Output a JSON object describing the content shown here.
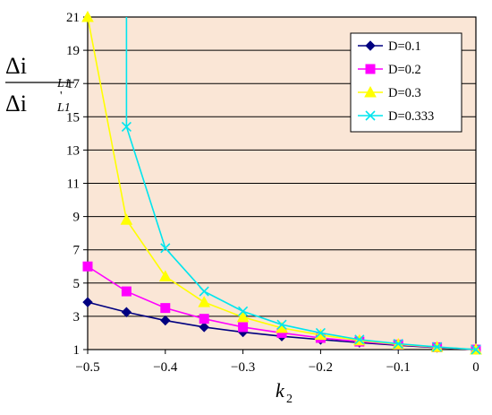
{
  "chart_data": {
    "type": "line",
    "title": "",
    "xlabel": "k",
    "xlabel_sub": "2",
    "ylabel_numerator": "Δi",
    "ylabel_denominator": "Δi",
    "ylabel_sub": "L1",
    "ylabel_prime": "'",
    "xlim": [
      -0.5,
      0
    ],
    "ylim": [
      1,
      21
    ],
    "x_ticks": [
      "−0.5",
      "−0.4",
      "−0.3",
      "−0.2",
      "−0.1",
      "0"
    ],
    "x_tick_values": [
      -0.5,
      -0.4,
      -0.3,
      -0.2,
      -0.1,
      0
    ],
    "y_ticks": [
      "1",
      "3",
      "5",
      "7",
      "9",
      "11",
      "13",
      "15",
      "17",
      "19",
      "21"
    ],
    "y_tick_values": [
      1,
      3,
      5,
      7,
      9,
      11,
      13,
      15,
      17,
      19,
      21
    ],
    "grid": "horizontal",
    "legend_position": "top-right",
    "plot_background": "#fae6d6",
    "series": [
      {
        "name": "D=0.1",
        "color": "#000080",
        "marker": "diamond",
        "x": [
          -0.5,
          -0.45,
          -0.4,
          -0.35,
          -0.3,
          -0.25,
          -0.2,
          -0.15,
          -0.1,
          -0.05,
          0
        ],
        "y": [
          3.85,
          3.25,
          2.75,
          2.35,
          2.05,
          1.8,
          1.6,
          1.42,
          1.26,
          1.12,
          1.0
        ]
      },
      {
        "name": "D=0.2",
        "color": "#ff00ff",
        "marker": "square",
        "x": [
          -0.5,
          -0.45,
          -0.4,
          -0.35,
          -0.3,
          -0.25,
          -0.2,
          -0.15,
          -0.1,
          -0.05,
          0
        ],
        "y": [
          6.0,
          4.5,
          3.5,
          2.85,
          2.35,
          2.0,
          1.7,
          1.48,
          1.3,
          1.14,
          1.0
        ]
      },
      {
        "name": "D=0.3",
        "color": "#ffff00",
        "marker": "triangle",
        "x": [
          -0.5,
          -0.45,
          -0.4,
          -0.35,
          -0.3,
          -0.25,
          -0.2,
          -0.15,
          -0.1,
          -0.05,
          0
        ],
        "y": [
          21.0,
          8.8,
          5.4,
          3.85,
          2.95,
          2.3,
          1.88,
          1.55,
          1.32,
          1.15,
          1.0
        ]
      },
      {
        "name": "D=0.333",
        "color": "#00e5ee",
        "marker": "x",
        "x": [
          -0.45,
          -0.45,
          -0.4,
          -0.35,
          -0.3,
          -0.25,
          -0.2,
          -0.15,
          -0.1,
          -0.05,
          0
        ],
        "y": [
          21.0,
          14.4,
          7.1,
          4.5,
          3.3,
          2.5,
          2.0,
          1.6,
          1.35,
          1.16,
          1.0
        ],
        "marker_skip_first": true
      }
    ]
  }
}
